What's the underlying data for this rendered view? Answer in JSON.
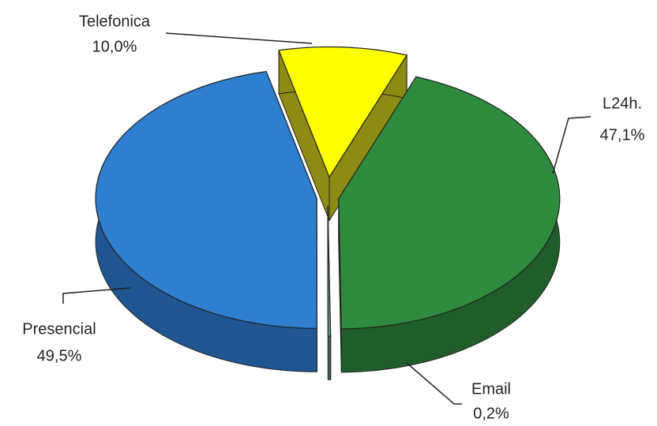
{
  "chart_data": {
    "type": "pie3d",
    "categories": [
      "Telefonica",
      "L24h.",
      "Email",
      "Presencial"
    ],
    "values": [
      10.0,
      47.1,
      0.2,
      49.5
    ],
    "value_labels": [
      "10,0%",
      "47,1%",
      "0,2%",
      "49,5%"
    ],
    "colors": [
      "#ffff00",
      "#2e8b3e",
      "#6a9a94",
      "#2f7fd0"
    ],
    "side_colors": [
      "#8c8c12",
      "#1f5e2a",
      "#3f6560",
      "#1f5590"
    ]
  }
}
